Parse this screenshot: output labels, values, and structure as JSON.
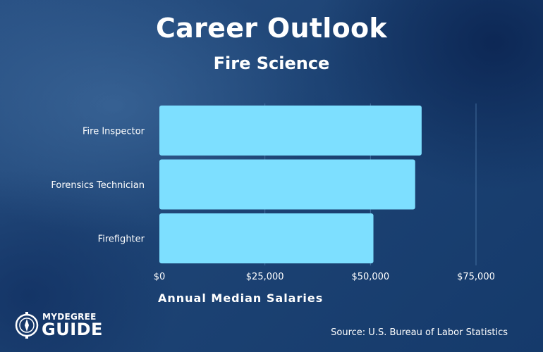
{
  "header": {
    "title": "Career Outlook",
    "subtitle": "Fire Science"
  },
  "chart_data": {
    "type": "bar",
    "orientation": "horizontal",
    "categories": [
      "Fire Inspector",
      "Forensics Technician",
      "Firefighter"
    ],
    "values": [
      62120,
      60590,
      50700
    ],
    "xlabel": "Annual Median Salaries",
    "xlim": [
      0,
      75000
    ],
    "xticks": [
      "$0",
      "$25,000",
      "$50,000",
      "$75,000"
    ],
    "grid": true,
    "bar_color": "#7ddfff",
    "gridline_color": "#5f8fbf"
  },
  "footer": {
    "logo_top": "MYDEGREE",
    "logo_bottom": "GUIDE",
    "source": "Source: U.S. Bureau of Labor Statistics"
  },
  "colors": {
    "background": "#1d4374",
    "text": "#ffffff"
  }
}
